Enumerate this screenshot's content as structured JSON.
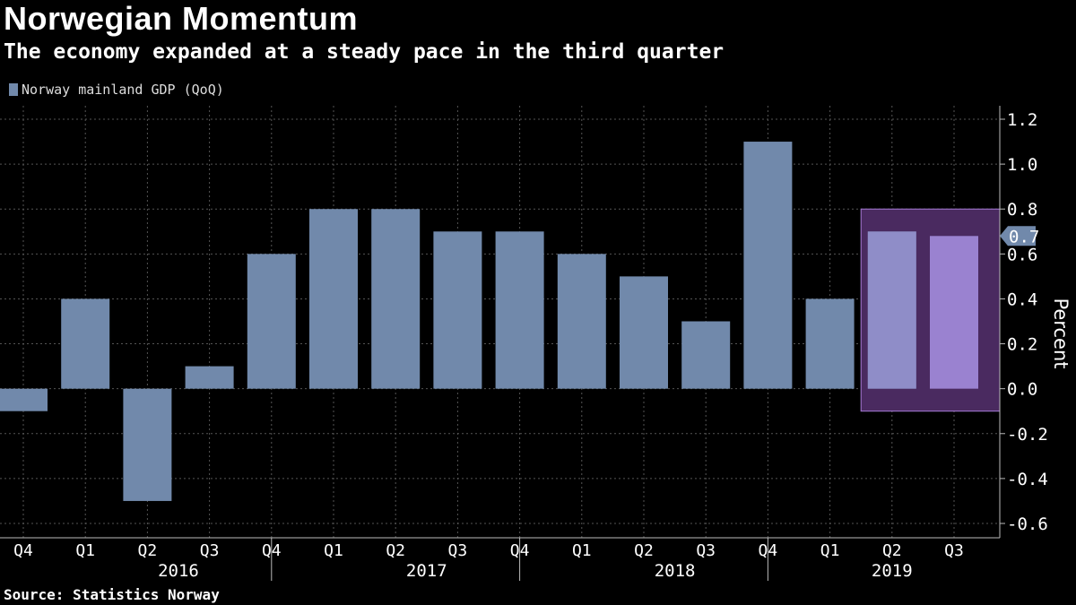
{
  "chart_data": {
    "type": "bar",
    "title": "Norwegian Momentum",
    "subtitle": "The economy expanded at a steady pace in the third quarter",
    "series": [
      {
        "name": "Norway mainland GDP (QoQ)",
        "color": "#7189ab",
        "values": [
          -0.1,
          0.4,
          -0.5,
          0.1,
          0.6,
          0.8,
          0.8,
          0.7,
          0.7,
          0.6,
          0.5,
          0.3,
          1.1,
          0.4,
          0.7,
          0.68
        ]
      }
    ],
    "categories": [
      "Q4",
      "Q1",
      "Q2",
      "Q3",
      "Q4",
      "Q1",
      "Q2",
      "Q3",
      "Q4",
      "Q1",
      "Q2",
      "Q3",
      "Q4",
      "Q1",
      "Q2",
      "Q3"
    ],
    "year_groups": [
      {
        "label": "2016",
        "start": 1,
        "end": 4
      },
      {
        "label": "2017",
        "start": 5,
        "end": 8
      },
      {
        "label": "2018",
        "start": 9,
        "end": 12
      },
      {
        "label": "2019",
        "start": 13,
        "end": 15
      }
    ],
    "ylabel": "Percent",
    "ylim": [
      -0.6,
      1.2
    ],
    "yticks": [
      1.2,
      1.0,
      0.8,
      0.6,
      0.4,
      0.2,
      0.0,
      -0.2,
      -0.4,
      -0.6
    ],
    "ytick_labels": [
      "1.2",
      "1.0",
      "0.8",
      "0.6",
      "0.4",
      "0.2",
      "0.0",
      "-0.2",
      "-0.4",
      "-0.6"
    ],
    "y_axis_position": "right",
    "grid": true,
    "legend_position": "top-left",
    "highlight": {
      "from_index": 14,
      "to_index": 15,
      "y_range": [
        -0.1,
        0.8
      ],
      "fill": "#4a2a60",
      "stroke": "#a77cd6",
      "bar_color": "#9a82d0"
    },
    "last_value_label": "0.7",
    "source": "Source:  Statistics Norway"
  }
}
